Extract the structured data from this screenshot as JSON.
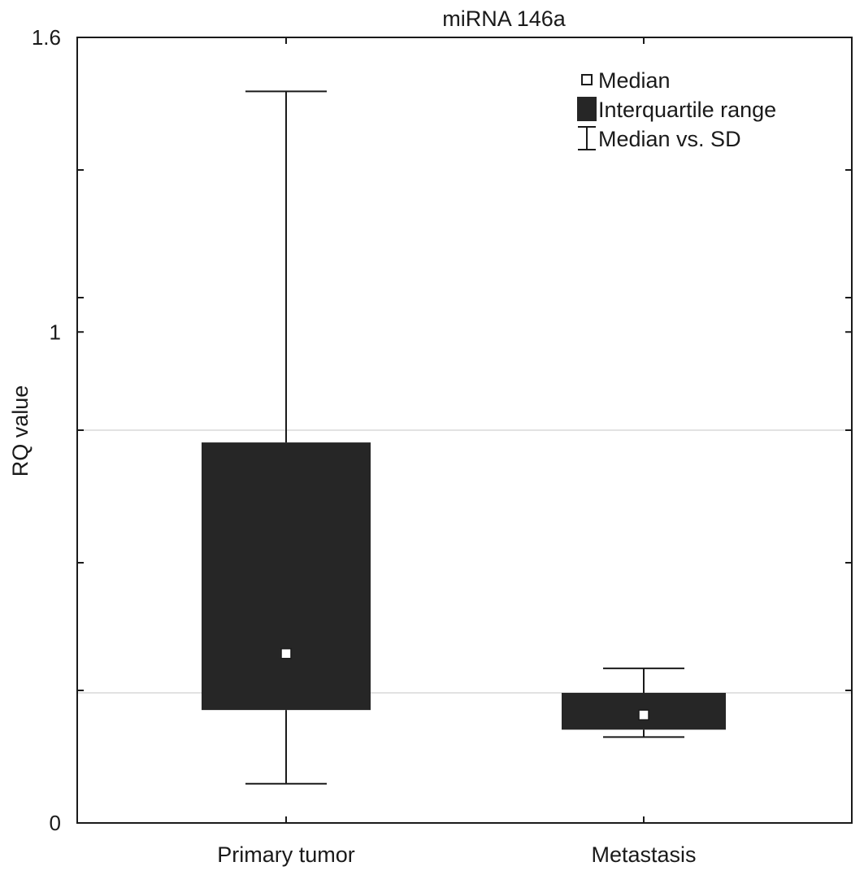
{
  "chart_data": {
    "type": "box",
    "title": "miRNA 146a",
    "xlabel": "",
    "ylabel": "RQ value",
    "ylim": [
      0,
      1.6
    ],
    "y_tick_labels": [
      {
        "value": 0,
        "label": "0"
      },
      {
        "value": 1,
        "label": "1"
      },
      {
        "value": 1.6,
        "label": "1.6"
      }
    ],
    "y_minor_ticks": [
      0.27,
      0.53,
      0.8,
      1.07,
      1.33
    ],
    "reference_lines": [
      0.265,
      0.8
    ],
    "categories": [
      "Primary tumor",
      "Metastasis"
    ],
    "boxes": [
      {
        "category": "Primary tumor",
        "median": 0.345,
        "q1": 0.23,
        "q3": 0.775,
        "whisker_low": 0.08,
        "whisker_high": 1.49
      },
      {
        "category": "Metastasis",
        "median": 0.22,
        "q1": 0.19,
        "q3": 0.265,
        "whisker_low": 0.175,
        "whisker_high": 0.315
      }
    ],
    "legend": {
      "position": "top-right",
      "entries": [
        {
          "symbol": "median-marker",
          "label": "Median"
        },
        {
          "symbol": "filled-box",
          "label": "Interquartile range"
        },
        {
          "symbol": "error-bar",
          "label": "Median vs. SD"
        }
      ]
    },
    "colors": {
      "box": "#262626",
      "line": "#1a1a1a",
      "grid": "#d9d9d9",
      "median_fill": "#ffffff"
    }
  }
}
